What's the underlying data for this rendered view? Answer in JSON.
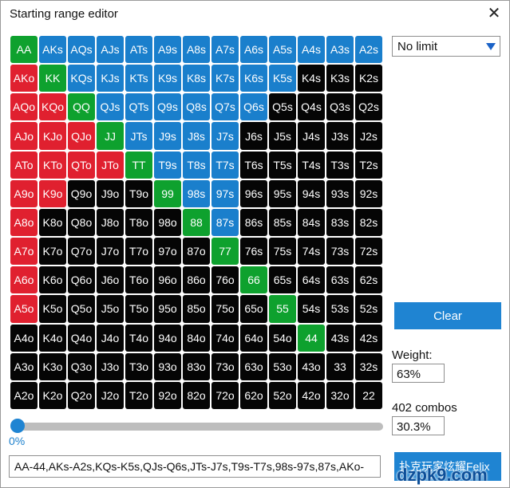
{
  "window": {
    "title": "Starting range editor",
    "close_glyph": "✕"
  },
  "grid": {
    "rows": [
      [
        "AA",
        "AKs",
        "AQs",
        "AJs",
        "ATs",
        "A9s",
        "A8s",
        "A7s",
        "A6s",
        "A5s",
        "A4s",
        "A3s",
        "A2s"
      ],
      [
        "AKo",
        "KK",
        "KQs",
        "KJs",
        "KTs",
        "K9s",
        "K8s",
        "K7s",
        "K6s",
        "K5s",
        "K4s",
        "K3s",
        "K2s"
      ],
      [
        "AQo",
        "KQo",
        "QQ",
        "QJs",
        "QTs",
        "Q9s",
        "Q8s",
        "Q7s",
        "Q6s",
        "Q5s",
        "Q4s",
        "Q3s",
        "Q2s"
      ],
      [
        "AJo",
        "KJo",
        "QJo",
        "JJ",
        "JTs",
        "J9s",
        "J8s",
        "J7s",
        "J6s",
        "J5s",
        "J4s",
        "J3s",
        "J2s"
      ],
      [
        "ATo",
        "KTo",
        "QTo",
        "JTo",
        "TT",
        "T9s",
        "T8s",
        "T7s",
        "T6s",
        "T5s",
        "T4s",
        "T3s",
        "T2s"
      ],
      [
        "A9o",
        "K9o",
        "Q9o",
        "J9o",
        "T9o",
        "99",
        "98s",
        "97s",
        "96s",
        "95s",
        "94s",
        "93s",
        "92s"
      ],
      [
        "A8o",
        "K8o",
        "Q8o",
        "J8o",
        "T8o",
        "98o",
        "88",
        "87s",
        "86s",
        "85s",
        "84s",
        "83s",
        "82s"
      ],
      [
        "A7o",
        "K7o",
        "Q7o",
        "J7o",
        "T7o",
        "97o",
        "87o",
        "77",
        "76s",
        "75s",
        "74s",
        "73s",
        "72s"
      ],
      [
        "A6o",
        "K6o",
        "Q6o",
        "J6o",
        "T6o",
        "96o",
        "86o",
        "76o",
        "66",
        "65s",
        "64s",
        "63s",
        "62s"
      ],
      [
        "A5o",
        "K5o",
        "Q5o",
        "J5o",
        "T5o",
        "95o",
        "85o",
        "75o",
        "65o",
        "55",
        "54s",
        "53s",
        "52s"
      ],
      [
        "A4o",
        "K4o",
        "Q4o",
        "J4o",
        "T4o",
        "94o",
        "84o",
        "74o",
        "64o",
        "54o",
        "44",
        "43s",
        "42s"
      ],
      [
        "A3o",
        "K3o",
        "Q3o",
        "J3o",
        "T3o",
        "93o",
        "83o",
        "73o",
        "63o",
        "53o",
        "43o",
        "33",
        "32s"
      ],
      [
        "A2o",
        "K2o",
        "Q2o",
        "J2o",
        "T2o",
        "92o",
        "82o",
        "72o",
        "62o",
        "52o",
        "42o",
        "32o",
        "22"
      ]
    ],
    "states": [
      "PSSSSSSSSSSSS",
      "OPSSSSSSSSNNN",
      "OOPSSSSSSNNNN",
      "OOOPSSSSNNNNN",
      "OOOOPSSSNNNNN",
      "OONNNPSSNNNNN",
      "ONNNNNPSNNNNN",
      "ONNNNNNPNNNNN",
      "ONNNNNNNPNNNN",
      "ONNNNNNNNPNNN",
      "NNNNNNNNNNPNN",
      "NNNNNNNNNNNNN",
      "NNNNNNNNNNNNN"
    ],
    "colors": {
      "pair": "#0ea12e",
      "suited": "#1a7fcc",
      "offsuit": "#e0202f",
      "unselected": "#050505"
    }
  },
  "controls": {
    "limit_select_value": "No limit",
    "clear_label": "Clear",
    "weight_label": "Weight:",
    "weight_value": "63%",
    "combos_label": "402 combos",
    "combos_percent": "30.3%",
    "slider_value": "0%",
    "range_text": "AA-44,AKs-A2s,KQs-K5s,QJs-Q6s,JTs-J7s,T9s-T7s,98s-97s,87s,AKo-",
    "watermark_button_text": "扑克玩家炫耀Felix",
    "watermark_site": "dzpk9.com"
  }
}
